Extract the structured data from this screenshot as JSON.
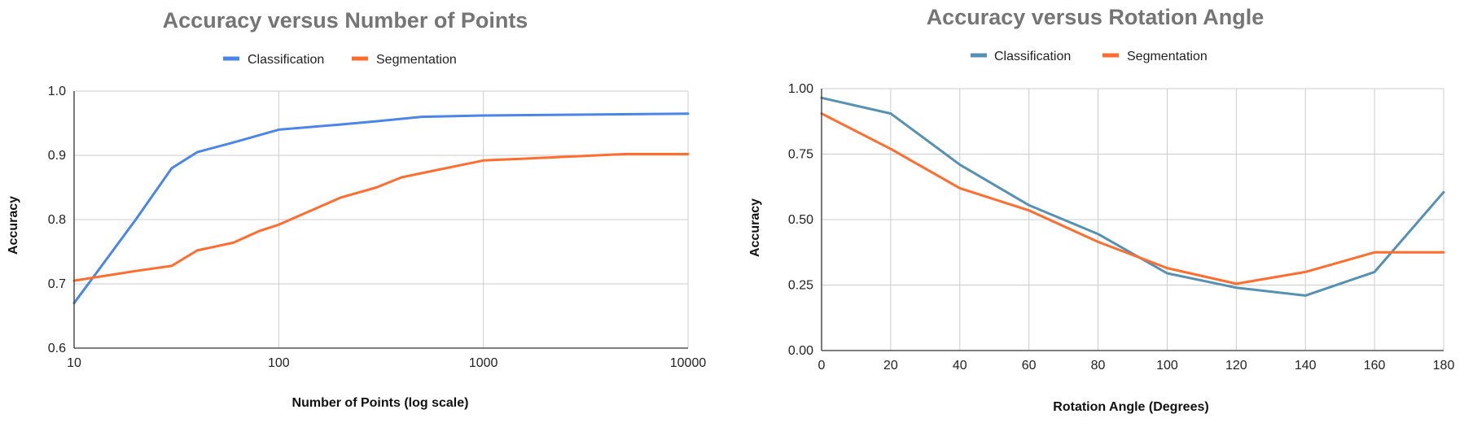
{
  "chart_data": [
    {
      "type": "line",
      "title": "Accuracy versus Number of Points",
      "xlabel": "Number of Points (log scale)",
      "ylabel": "Accuracy",
      "xscale": "log",
      "xlim": [
        10,
        10000
      ],
      "ylim": [
        0.6,
        1.0
      ],
      "xticks": [
        "10",
        "100",
        "1000",
        "10000"
      ],
      "yticks": [
        "0.6",
        "0.7",
        "0.8",
        "0.9",
        "1.0"
      ],
      "grid": true,
      "legend_position": "top",
      "series": [
        {
          "name": "Classification",
          "color": "#4a86e8",
          "x": [
            10,
            20,
            30,
            40,
            60,
            100,
            200,
            300,
            500,
            1000,
            10000
          ],
          "y": [
            0.67,
            0.8,
            0.88,
            0.905,
            0.92,
            0.94,
            0.948,
            0.953,
            0.96,
            0.962,
            0.965
          ]
        },
        {
          "name": "Segmentation",
          "color": "#ff6d2e",
          "x": [
            10,
            20,
            30,
            40,
            60,
            80,
            100,
            200,
            300,
            400,
            1000,
            5000,
            10000
          ],
          "y": [
            0.705,
            0.72,
            0.728,
            0.752,
            0.764,
            0.782,
            0.792,
            0.834,
            0.85,
            0.866,
            0.892,
            0.902,
            0.902
          ]
        }
      ]
    },
    {
      "type": "line",
      "title": "Accuracy versus Rotation Angle",
      "xlabel": "Rotation Angle (Degrees)",
      "ylabel": "Accuracy",
      "xlim": [
        0,
        180
      ],
      "ylim": [
        0,
        1.0
      ],
      "xticks": [
        "0",
        "20",
        "40",
        "60",
        "80",
        "100",
        "120",
        "140",
        "160",
        "180"
      ],
      "yticks": [
        "0.00",
        "0.25",
        "0.50",
        "0.75",
        "1.00"
      ],
      "grid": true,
      "legend_position": "top",
      "series": [
        {
          "name": "Classification",
          "color": "#5591b4",
          "x": [
            0,
            20,
            40,
            60,
            80,
            100,
            120,
            140,
            160,
            180
          ],
          "y": [
            0.965,
            0.905,
            0.71,
            0.555,
            0.445,
            0.295,
            0.24,
            0.21,
            0.3,
            0.605
          ]
        },
        {
          "name": "Segmentation",
          "color": "#ff6d2e",
          "x": [
            0,
            20,
            40,
            60,
            80,
            100,
            120,
            140,
            160,
            180
          ],
          "y": [
            0.905,
            0.77,
            0.62,
            0.535,
            0.415,
            0.315,
            0.255,
            0.3,
            0.375,
            0.375
          ]
        }
      ]
    }
  ]
}
